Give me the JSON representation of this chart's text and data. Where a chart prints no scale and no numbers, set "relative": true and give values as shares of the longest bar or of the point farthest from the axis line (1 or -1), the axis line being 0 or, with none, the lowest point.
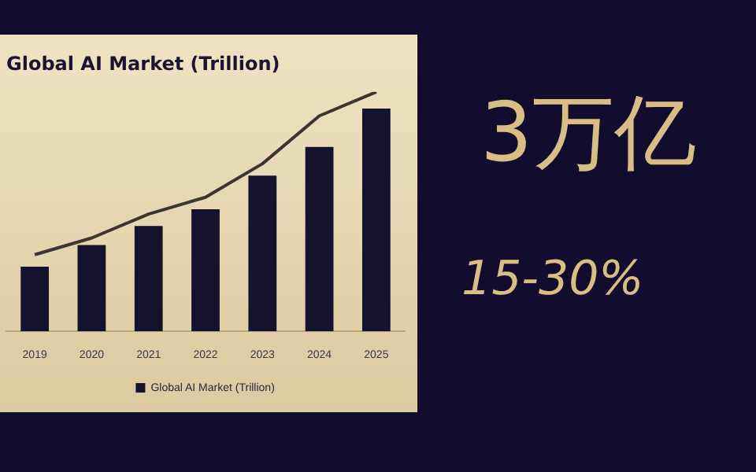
{
  "chart_data": {
    "type": "bar",
    "title": "Global AI Market (Trillion)",
    "relative": true,
    "categories": [
      "2019",
      "2020",
      "2021",
      "2022",
      "2023",
      "2024",
      "2025"
    ],
    "series": [
      {
        "name": "Global AI Market (Trillion)",
        "color": "#15122e",
        "values": [
          0.27,
          0.36,
          0.44,
          0.51,
          0.65,
          0.77,
          0.93
        ]
      },
      {
        "type": "line",
        "color": "#3d3434",
        "values": [
          0.32,
          0.39,
          0.49,
          0.56,
          0.7,
          0.9,
          1.0
        ]
      }
    ],
    "legend": "bottom",
    "annotations": [
      "3万亿",
      "15-30%"
    ]
  }
}
